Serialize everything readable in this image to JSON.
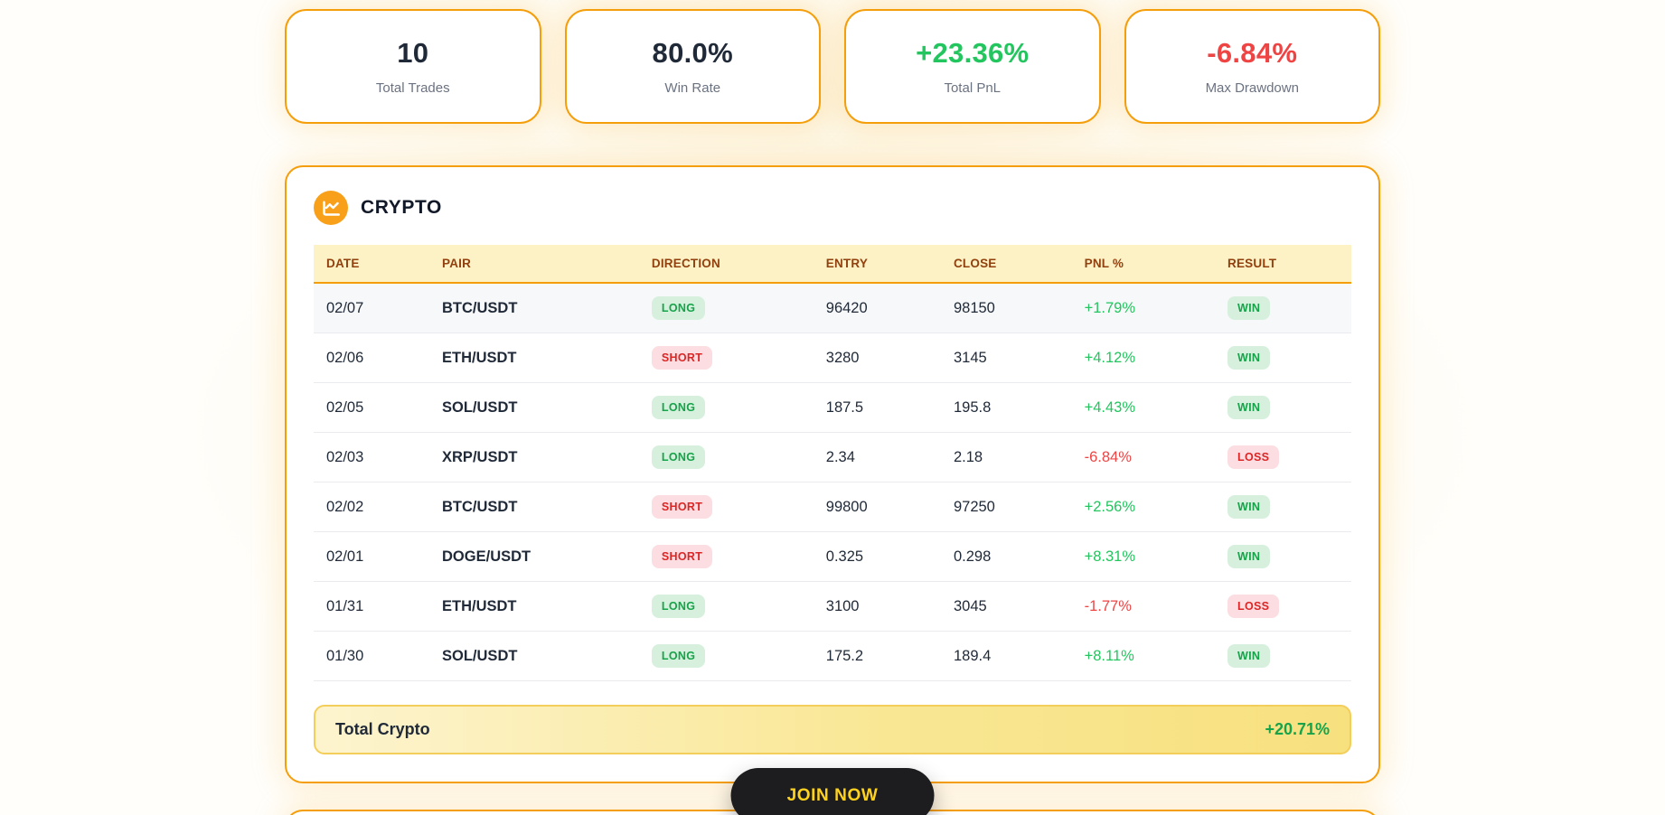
{
  "stats": [
    {
      "value": "10",
      "label": "Total Trades",
      "tone": "dark"
    },
    {
      "value": "80.0%",
      "label": "Win Rate",
      "tone": "dark"
    },
    {
      "value": "+23.36%",
      "label": "Total PnL",
      "tone": "green"
    },
    {
      "value": "-6.84%",
      "label": "Max Drawdown",
      "tone": "red"
    }
  ],
  "section": {
    "title": "CRYPTO",
    "icon": "chart-line-icon",
    "table": {
      "headers": [
        "DATE",
        "PAIR",
        "DIRECTION",
        "ENTRY",
        "CLOSE",
        "PNL %",
        "RESULT"
      ],
      "rows": [
        {
          "date": "02/07",
          "pair": "BTC/USDT",
          "direction": "LONG",
          "entry": "96420",
          "close": "98150",
          "pnl": "+1.79%",
          "result": "WIN"
        },
        {
          "date": "02/06",
          "pair": "ETH/USDT",
          "direction": "SHORT",
          "entry": "3280",
          "close": "3145",
          "pnl": "+4.12%",
          "result": "WIN"
        },
        {
          "date": "02/05",
          "pair": "SOL/USDT",
          "direction": "LONG",
          "entry": "187.5",
          "close": "195.8",
          "pnl": "+4.43%",
          "result": "WIN"
        },
        {
          "date": "02/03",
          "pair": "XRP/USDT",
          "direction": "LONG",
          "entry": "2.34",
          "close": "2.18",
          "pnl": "-6.84%",
          "result": "LOSS"
        },
        {
          "date": "02/02",
          "pair": "BTC/USDT",
          "direction": "SHORT",
          "entry": "99800",
          "close": "97250",
          "pnl": "+2.56%",
          "result": "WIN"
        },
        {
          "date": "02/01",
          "pair": "DOGE/USDT",
          "direction": "SHORT",
          "entry": "0.325",
          "close": "0.298",
          "pnl": "+8.31%",
          "result": "WIN"
        },
        {
          "date": "01/31",
          "pair": "ETH/USDT",
          "direction": "LONG",
          "entry": "3100",
          "close": "3045",
          "pnl": "-1.77%",
          "result": "LOSS"
        },
        {
          "date": "01/30",
          "pair": "SOL/USDT",
          "direction": "LONG",
          "entry": "175.2",
          "close": "189.4",
          "pnl": "+8.11%",
          "result": "WIN"
        }
      ]
    },
    "total": {
      "label": "Total Crypto",
      "value": "+20.71%"
    }
  },
  "cta": {
    "label": "JOIN NOW"
  },
  "colors": {
    "card_border": "#F59E0B",
    "header_bg": "#fdf2c6",
    "header_text": "#92400e",
    "positive": "#22c55e",
    "negative": "#ef4444",
    "badge_green_bg": "#d7f0dd",
    "badge_green_text": "#16a34a",
    "badge_red_bg": "#fcdee2",
    "badge_red_text": "#dc2626",
    "cta_bg": "#1d1d1f",
    "cta_text": "#ffd21e",
    "total_bar_gradient": [
      "#fdf4cf",
      "#f7e07e"
    ]
  }
}
